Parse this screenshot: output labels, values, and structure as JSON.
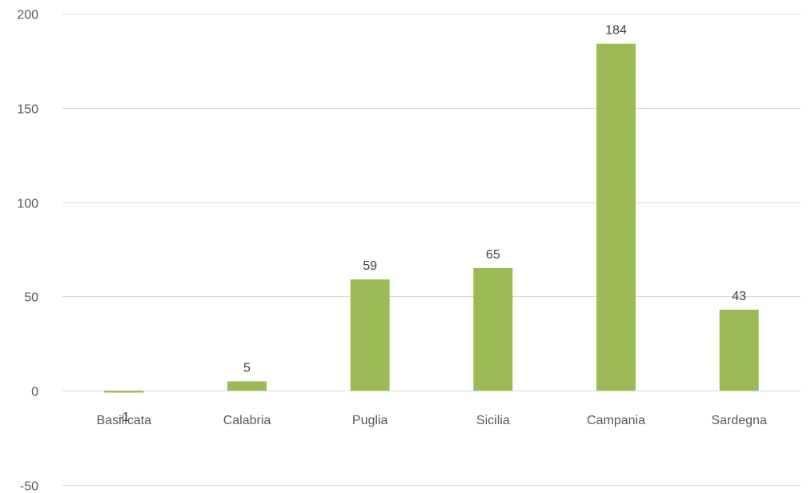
{
  "chart_data": {
    "type": "bar",
    "categories": [
      "Basilicata",
      "Calabria",
      "Puglia",
      "Sicilia",
      "Campania",
      "Sardegna"
    ],
    "values": [
      -1,
      5,
      59,
      65,
      184,
      43
    ],
    "data_labels": [
      "-1",
      "5",
      "59",
      "65",
      "184",
      "43"
    ],
    "ylim": [
      -50,
      200
    ],
    "yticks": [
      -50,
      0,
      50,
      100,
      150,
      200
    ],
    "ytick_labels": [
      "-50",
      "0",
      "50",
      "100",
      "150",
      "200"
    ],
    "grid": true,
    "legend": "none",
    "title": "",
    "xlabel": "",
    "ylabel": "",
    "bar_color": "#9bbb59",
    "grid_color": "#d9d9d9",
    "text_color": "#595959"
  }
}
